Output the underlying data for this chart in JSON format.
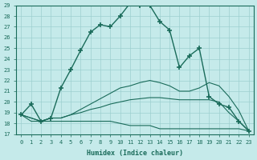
{
  "xlabel": "Humidex (Indice chaleur)",
  "xlim": [
    -0.5,
    23.5
  ],
  "ylim": [
    17,
    29
  ],
  "xticks": [
    0,
    1,
    2,
    3,
    4,
    5,
    6,
    7,
    8,
    9,
    10,
    11,
    12,
    13,
    14,
    15,
    16,
    17,
    18,
    19,
    20,
    21,
    22,
    23
  ],
  "yticks": [
    17,
    18,
    19,
    20,
    21,
    22,
    23,
    24,
    25,
    26,
    27,
    28,
    29
  ],
  "bg_color": "#c5eaea",
  "line_color": "#1a6b5a",
  "grid_color": "#9dcfcf",
  "line1_x": [
    0,
    1,
    2,
    3,
    4,
    5,
    6,
    7,
    8,
    9,
    10,
    11,
    12,
    13,
    14,
    15,
    16,
    17,
    18,
    19,
    20,
    21,
    22,
    23
  ],
  "line1_y": [
    18.8,
    18.2,
    18.2,
    18.2,
    18.2,
    18.2,
    18.2,
    18.2,
    18.2,
    18.2,
    18.0,
    17.8,
    17.8,
    17.8,
    17.5,
    17.5,
    17.5,
    17.5,
    17.5,
    17.5,
    17.5,
    17.5,
    17.5,
    17.3
  ],
  "line2_x": [
    0,
    1,
    2,
    3,
    4,
    5,
    6,
    7,
    8,
    9,
    10,
    11,
    12,
    13,
    14,
    15,
    16,
    17,
    18,
    19,
    20,
    21,
    22,
    23
  ],
  "line2_y": [
    18.8,
    18.5,
    18.2,
    18.5,
    18.5,
    18.8,
    19.0,
    19.3,
    19.5,
    19.8,
    20.0,
    20.2,
    20.3,
    20.4,
    20.4,
    20.3,
    20.2,
    20.2,
    20.2,
    20.2,
    20.0,
    19.0,
    18.2,
    17.3
  ],
  "line3_x": [
    0,
    1,
    2,
    3,
    4,
    5,
    6,
    7,
    8,
    9,
    10,
    11,
    12,
    13,
    14,
    15,
    16,
    17,
    18,
    19,
    20,
    21,
    22,
    23
  ],
  "line3_y": [
    18.8,
    18.5,
    18.2,
    18.5,
    18.5,
    18.8,
    19.3,
    19.8,
    20.3,
    20.8,
    21.3,
    21.5,
    21.8,
    22.0,
    21.8,
    21.5,
    21.0,
    21.0,
    21.3,
    21.8,
    21.5,
    20.5,
    19.2,
    17.3
  ],
  "line4_x": [
    0,
    1,
    2,
    3,
    4,
    5,
    6,
    7,
    8,
    9,
    10,
    11,
    12,
    13,
    14,
    15,
    16,
    17,
    18,
    19,
    20,
    21,
    22,
    23
  ],
  "line4_y": [
    18.8,
    19.8,
    18.2,
    18.5,
    21.3,
    23.0,
    24.8,
    26.5,
    27.2,
    27.0,
    28.0,
    29.2,
    29.0,
    29.0,
    27.5,
    26.7,
    23.2,
    24.3,
    25.0,
    20.5,
    19.8,
    19.5,
    18.2,
    17.3
  ]
}
